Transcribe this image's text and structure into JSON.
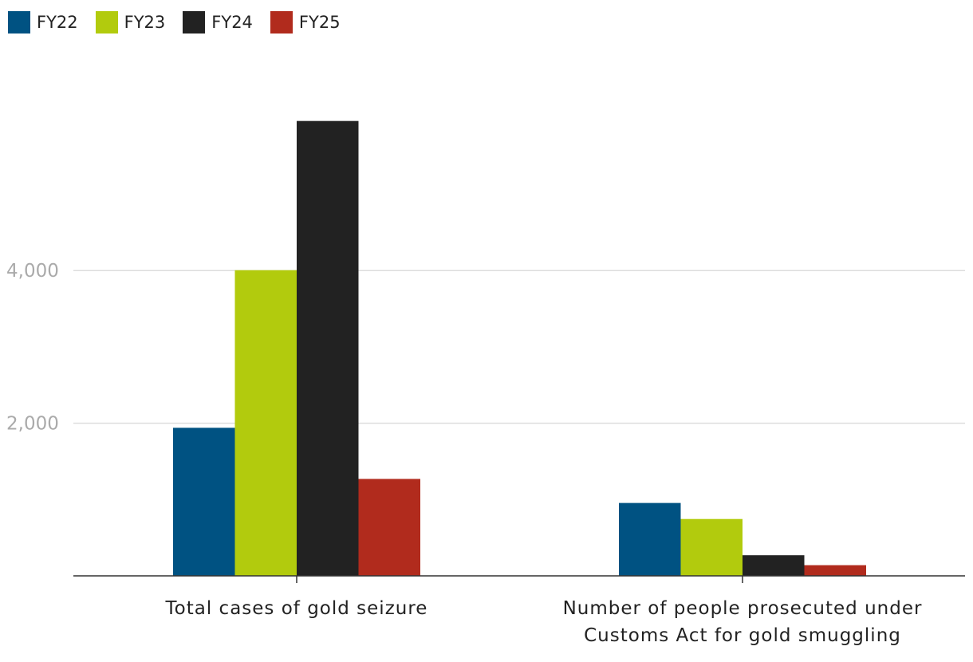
{
  "chart_data": {
    "type": "bar",
    "title": "",
    "xlabel": "",
    "ylabel": "",
    "categories": [
      [
        "Total cases of gold seizure"
      ],
      [
        "Number of people prosecuted under",
        "Customs Act for gold smuggling"
      ]
    ],
    "series": [
      {
        "name": "FY22",
        "color": "#005282",
        "values": [
          1940,
          955
        ]
      },
      {
        "name": "FY23",
        "color": "#b2cb0d",
        "values": [
          4005,
          745
        ]
      },
      {
        "name": "FY24",
        "color": "#222222",
        "values": [
          5960,
          270
        ]
      },
      {
        "name": "FY25",
        "color": "#b12b1d",
        "values": [
          1270,
          140
        ]
      }
    ],
    "y_ticks": [
      {
        "value": 2000,
        "label": "2,000"
      },
      {
        "value": 4000,
        "label": "4,000"
      }
    ],
    "ylim": [
      0,
      6500
    ],
    "grid": true,
    "legend": "top-left"
  }
}
